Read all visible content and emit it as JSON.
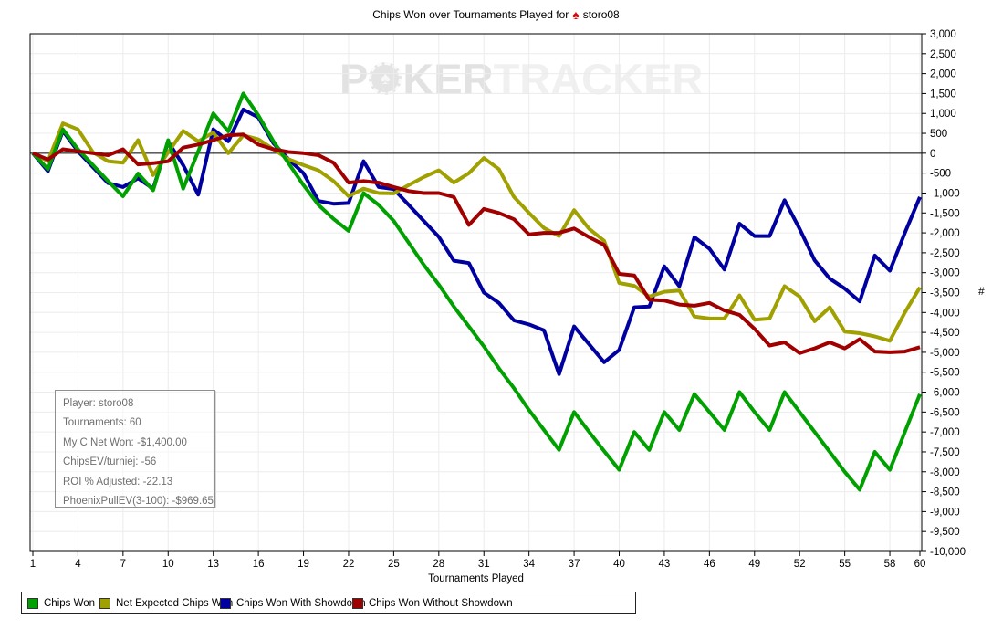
{
  "title": {
    "prefix": "Chips Won over Tournaments Played for",
    "icon": "spade-icon",
    "player": "storo08"
  },
  "watermark": {
    "part1": "P",
    "part2": "KER",
    "part3": "TRACKER",
    "chip_icon": "poker-chip-spade-icon"
  },
  "info_box": {
    "lines": [
      "Player: storo08",
      "Tournaments: 60",
      "My C Net Won: -$1,400.00",
      "ChipsEV/turniej: -56",
      "ROI % Adjusted: -22.13",
      "PhoenixPullEV(3-100): -$969.65"
    ]
  },
  "axes": {
    "x_title": "Tournaments Played",
    "y_title": "#"
  },
  "legend": {
    "items": [
      {
        "label": "Chips Won",
        "color": "#00a000"
      },
      {
        "label": "Net Expected Chips Won",
        "color": "#a0a000"
      },
      {
        "label": "Chips Won With Showdown",
        "color": "#0000a0"
      },
      {
        "label": "Chips Won Without Showdown",
        "color": "#a00000"
      }
    ]
  },
  "chart_data": {
    "type": "line",
    "title": "Chips Won over Tournaments Played for storo08",
    "xlabel": "Tournaments Played",
    "ylabel": "#",
    "xlim": [
      1,
      60
    ],
    "ylim": [
      -10000,
      3000
    ],
    "y_tick_step": 500,
    "x_ticks": [
      1,
      4,
      7,
      10,
      13,
      16,
      19,
      22,
      25,
      28,
      31,
      34,
      37,
      40,
      43,
      46,
      49,
      52,
      55,
      58,
      60
    ],
    "grid": true,
    "zero_line": true,
    "legend_position": "bottom",
    "colors": {
      "grid": "#ececec",
      "axis": "#000000",
      "background": "#ffffff"
    },
    "draw_order": [
      2,
      1,
      0,
      3
    ],
    "series": [
      {
        "name": "Chips Won",
        "color": "#00a000",
        "values": [
          0,
          -400,
          600,
          100,
          -300,
          -700,
          -1080,
          -510,
          -930,
          330,
          -890,
          50,
          1000,
          550,
          1500,
          950,
          300,
          -250,
          -800,
          -1300,
          -1650,
          -1950,
          -1000,
          -1300,
          -1700,
          -2250,
          -2800,
          -3300,
          -3850,
          -4350,
          -4850,
          -5400,
          -5900,
          -6450,
          -6950,
          -7450,
          -6500,
          -7000,
          -7480,
          -7950,
          -7000,
          -7450,
          -6500,
          -6950,
          -6050,
          -6500,
          -6950,
          -6000,
          -6500,
          -6950,
          -6000,
          -6500,
          -7000,
          -7500,
          -8000,
          -8450,
          -7500,
          -7950,
          -7000,
          -6050
        ]
      },
      {
        "name": "Net Expected Chips Won",
        "color": "#a0a000",
        "values": [
          0,
          -200,
          750,
          600,
          25,
          -200,
          -240,
          330,
          -550,
          25,
          560,
          300,
          520,
          0,
          450,
          350,
          100,
          -150,
          -300,
          -430,
          -700,
          -1080,
          -890,
          -1000,
          -1010,
          -800,
          -600,
          -430,
          -740,
          -500,
          -120,
          -400,
          -1100,
          -1500,
          -1880,
          -2080,
          -1430,
          -1900,
          -2200,
          -3260,
          -3330,
          -3600,
          -3480,
          -3450,
          -4100,
          -4150,
          -4150,
          -3570,
          -4180,
          -4150,
          -3340,
          -3600,
          -4220,
          -3870,
          -4480,
          -4520,
          -4600,
          -4710,
          -4000,
          -3370
        ]
      },
      {
        "name": "Chips Won With Showdown",
        "color": "#0000a0",
        "values": [
          0,
          -450,
          560,
          50,
          -350,
          -750,
          -850,
          -630,
          -890,
          290,
          -300,
          -1040,
          600,
          300,
          1100,
          900,
          250,
          -150,
          -500,
          -1200,
          -1270,
          -1250,
          -200,
          -850,
          -900,
          -1300,
          -1700,
          -2100,
          -2700,
          -2760,
          -3500,
          -3760,
          -4200,
          -4300,
          -4450,
          -5550,
          -4350,
          -4800,
          -5250,
          -4940,
          -3870,
          -3850,
          -2840,
          -3340,
          -2110,
          -2400,
          -2920,
          -1770,
          -2080,
          -2080,
          -1180,
          -1900,
          -2690,
          -3150,
          -3400,
          -3720,
          -2570,
          -2950,
          -2000,
          -1100
        ]
      },
      {
        "name": "Chips Won Without Showdown",
        "color": "#a00000",
        "values": [
          0,
          -160,
          100,
          50,
          0,
          -50,
          100,
          -280,
          -250,
          -200,
          140,
          220,
          330,
          450,
          470,
          220,
          100,
          30,
          0,
          -50,
          -240,
          -740,
          -700,
          -740,
          -850,
          -950,
          -1000,
          -1000,
          -1100,
          -1800,
          -1400,
          -1500,
          -1660,
          -2040,
          -2000,
          -2000,
          -1890,
          -2110,
          -2300,
          -3030,
          -3070,
          -3680,
          -3700,
          -3800,
          -3830,
          -3760,
          -3950,
          -4060,
          -4410,
          -4830,
          -4750,
          -5020,
          -4900,
          -4750,
          -4900,
          -4670,
          -4980,
          -5000,
          -4980,
          -4870
        ]
      }
    ]
  }
}
